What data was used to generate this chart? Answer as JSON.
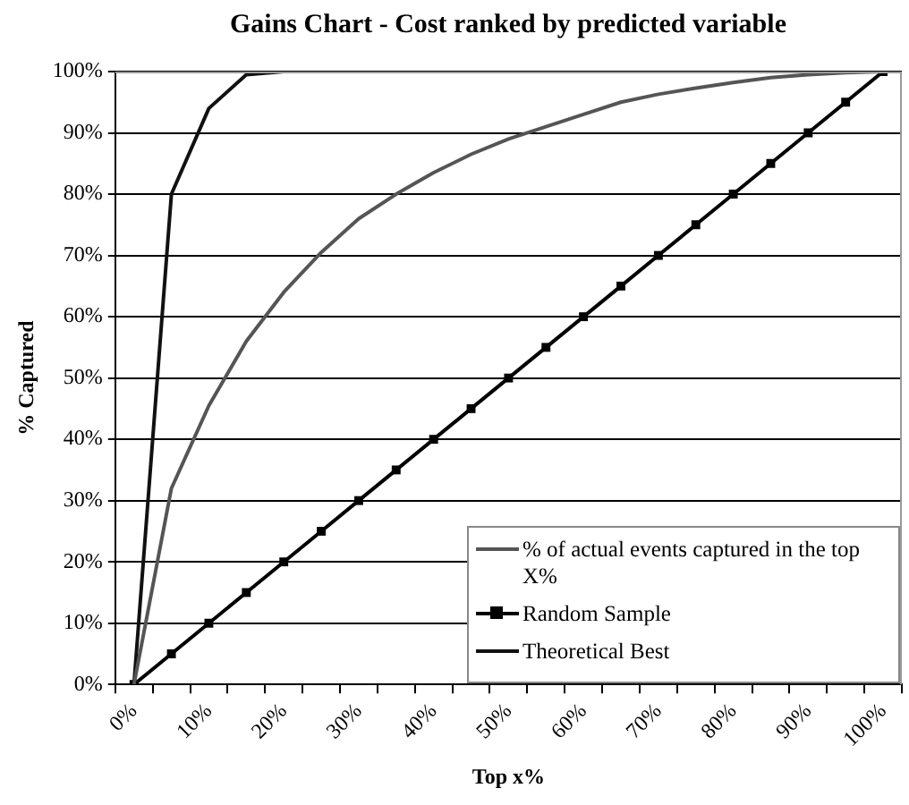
{
  "chart_data": {
    "type": "line",
    "title": "Gains Chart - Cost ranked by predicted variable",
    "xlabel": "Top x%",
    "ylabel": "% Captured",
    "categories": [
      "0%",
      null,
      "10%",
      null,
      "20%",
      null,
      "30%",
      null,
      "40%",
      null,
      "50%",
      null,
      "60%",
      null,
      "70%",
      null,
      "80%",
      null,
      "90%",
      null,
      "100%"
    ],
    "series": [
      {
        "name": "% of actual events captured in the top X%",
        "color": "#555555",
        "marker": "none",
        "values": [
          0,
          32,
          45.5,
          56,
          64,
          70.5,
          76,
          80,
          83.5,
          86.5,
          89,
          91,
          93,
          95,
          96.3,
          97.3,
          98.2,
          99,
          99.5,
          99.8,
          100
        ]
      },
      {
        "name": "Random Sample",
        "color": "#000000",
        "marker": "square",
        "values": [
          0,
          5,
          10,
          15,
          20,
          25,
          30,
          35,
          40,
          45,
          50,
          55,
          60,
          65,
          70,
          75,
          80,
          85,
          90,
          95,
          100
        ]
      },
      {
        "name": "Theoretical Best",
        "color": "#111111",
        "marker": "none",
        "values": [
          0,
          80,
          94,
          99.5,
          100,
          100,
          100,
          100,
          100,
          100,
          100,
          100,
          100,
          100,
          100,
          100,
          100,
          100,
          100,
          100,
          100
        ]
      }
    ],
    "ylim": [
      0,
      100
    ],
    "yticks": [
      {
        "value": 0,
        "label": "0%"
      },
      {
        "value": 10,
        "label": "10%"
      },
      {
        "value": 20,
        "label": "20%"
      },
      {
        "value": 30,
        "label": "30%"
      },
      {
        "value": 40,
        "label": "40%"
      },
      {
        "value": 50,
        "label": "50%"
      },
      {
        "value": 60,
        "label": "60%"
      },
      {
        "value": 70,
        "label": "70%"
      },
      {
        "value": 80,
        "label": "80%"
      },
      {
        "value": 90,
        "label": "90%"
      },
      {
        "value": 100,
        "label": "100%"
      }
    ],
    "grid": "y",
    "legend": "bottom right",
    "line_style": "solid"
  }
}
